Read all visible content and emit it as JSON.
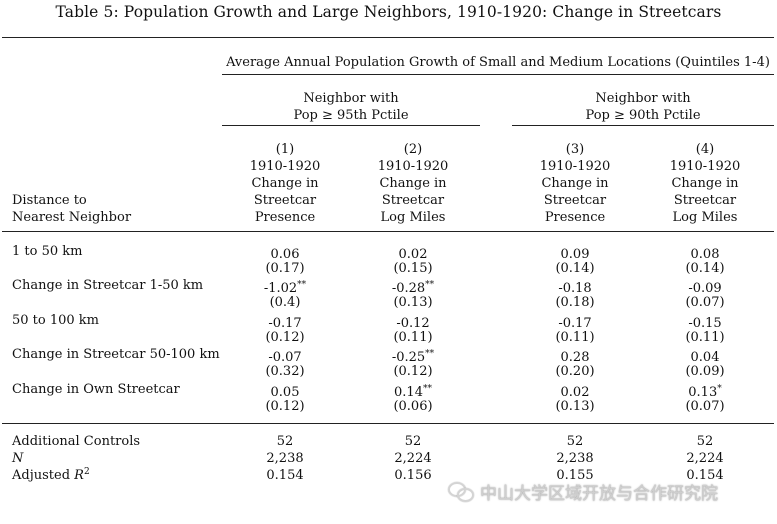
{
  "caption": "Table 5: Population Growth and Large Neighbors, 1910-1920: Change in Streetcars",
  "spanner": "Average Annual Population Growth of Small and Medium Locations (Quintiles 1-4)",
  "groups": [
    {
      "line1": "Neighbor with",
      "line2": "Pop ≥ 95th Pctile"
    },
    {
      "line1": "Neighbor with",
      "line2": "Pop ≥ 90th Pctile"
    }
  ],
  "columns": [
    {
      "num": "(1)",
      "lines": [
        "1910-1920",
        "Change in",
        "Streetcar",
        "Presence"
      ]
    },
    {
      "num": "(2)",
      "lines": [
        "1910-1920",
        "Change in",
        "Streetcar",
        "Log Miles"
      ]
    },
    {
      "num": "(3)",
      "lines": [
        "1910-1920",
        "Change in",
        "Streetcar",
        "Presence"
      ]
    },
    {
      "num": "(4)",
      "lines": [
        "1910-1920",
        "Change in",
        "Streetcar",
        "Log Miles"
      ]
    }
  ],
  "stub_head": [
    "Distance to",
    "Nearest Neighbor"
  ],
  "rows": [
    {
      "label": "1 to 50 km",
      "coef": [
        "0.06",
        "0.02",
        "0.09",
        "0.08"
      ],
      "stars": [
        "",
        "",
        "",
        ""
      ],
      "se": [
        "(0.17)",
        "(0.15)",
        "(0.14)",
        "(0.14)"
      ]
    },
    {
      "label": "Change in Streetcar 1-50 km",
      "coef": [
        "-1.02",
        "-0.28",
        "-0.18",
        "-0.09"
      ],
      "stars": [
        "**",
        "**",
        "",
        ""
      ],
      "se": [
        "(0.4)",
        "(0.13)",
        "(0.18)",
        "(0.07)"
      ]
    },
    {
      "label": "50 to 100 km",
      "coef": [
        "-0.17",
        "-0.12",
        "-0.17",
        "-0.15"
      ],
      "stars": [
        "",
        "",
        "",
        ""
      ],
      "se": [
        "(0.12)",
        "(0.11)",
        "(0.11)",
        "(0.11)"
      ]
    },
    {
      "label": "Change in Streetcar 50-100 km",
      "coef": [
        "-0.07",
        "-0.25",
        "0.28",
        "0.04"
      ],
      "stars": [
        "",
        "**",
        "",
        ""
      ],
      "se": [
        "(0.32)",
        "(0.12)",
        "(0.20)",
        "(0.09)"
      ]
    },
    {
      "label": "Change in Own Streetcar",
      "coef": [
        "0.05",
        "0.14",
        "0.02",
        "0.13"
      ],
      "stars": [
        "",
        "**",
        "",
        "*"
      ],
      "se": [
        "(0.12)",
        "(0.06)",
        "(0.13)",
        "(0.07)"
      ]
    }
  ],
  "footer": [
    {
      "label": "Additional Controls",
      "values": [
        "52",
        "52",
        "52",
        "52"
      ]
    },
    {
      "label": "N",
      "values": [
        "2,238",
        "2,224",
        "2,238",
        "2,224"
      ]
    },
    {
      "label": "Adjusted R",
      "label_sup": "2",
      "values": [
        "0.154",
        "0.156",
        "0.155",
        "0.154"
      ]
    }
  ],
  "watermark": "中山大学区域开放与合作研究院"
}
